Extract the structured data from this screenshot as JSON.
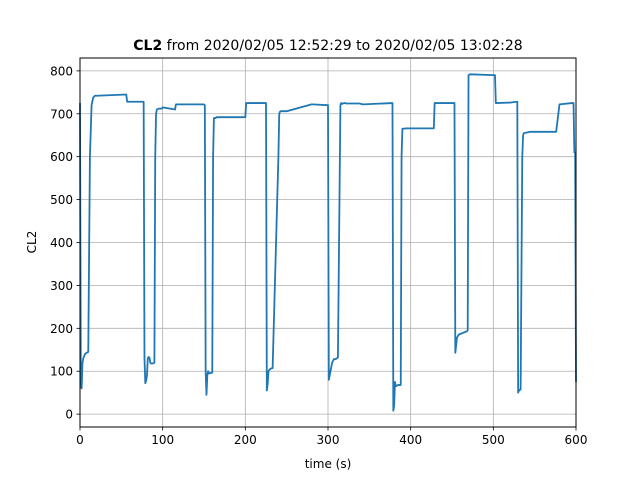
{
  "chart_data": {
    "type": "line",
    "title": {
      "bold": "CL2",
      "rest": " from 2020/02/05 12:52:29 to 2020/02/05 13:02:28"
    },
    "xlabel": "time (s)",
    "ylabel": "CL2",
    "xlim": [
      0,
      600
    ],
    "ylim": [
      -30,
      830
    ],
    "x_ticks": [
      0,
      100,
      200,
      300,
      400,
      500,
      600
    ],
    "y_ticks": [
      0,
      100,
      200,
      300,
      400,
      500,
      600,
      700,
      800
    ],
    "grid": true,
    "line_color": "#1f77b4",
    "series": [
      {
        "x": [
          0,
          1,
          2,
          3,
          4,
          5,
          6,
          8,
          10,
          12,
          14,
          16,
          17,
          18,
          20,
          56,
          57,
          77,
          78,
          79,
          80,
          81,
          82,
          83,
          84,
          85,
          86,
          88,
          90,
          91,
          92,
          93,
          95,
          99,
          100,
          115,
          116,
          120,
          150,
          151,
          152,
          153,
          154,
          155,
          156,
          157,
          160,
          161,
          162,
          164,
          165,
          200,
          201,
          220,
          225,
          226,
          227,
          228,
          229,
          230,
          232,
          233,
          240,
          241,
          242,
          243,
          245,
          250,
          280,
          281,
          300,
          301,
          302,
          303,
          304,
          305,
          307,
          309,
          312,
          315,
          316,
          317,
          318,
          320,
          322,
          338,
          342,
          378,
          379,
          380,
          381,
          382,
          385,
          388,
          389,
          390,
          395,
          428,
          429,
          452,
          453,
          454,
          455,
          456,
          458,
          464,
          468,
          469,
          470,
          472,
          500,
          501,
          502,
          503,
          520,
          528,
          529,
          530,
          531,
          532,
          533,
          535,
          536,
          537,
          545,
          575,
          576,
          580,
          595,
          597,
          598,
          599,
          600
        ],
        "y": [
          725,
          65,
          60,
          120,
          130,
          135,
          140,
          143,
          145,
          600,
          720,
          738,
          740,
          742,
          742,
          745,
          728,
          728,
          130,
          72,
          78,
          90,
          130,
          133,
          132,
          120,
          118,
          118,
          120,
          600,
          700,
          710,
          712,
          712,
          715,
          710,
          722,
          722,
          722,
          720,
          100,
          45,
          90,
          100,
          95,
          95,
          97,
          600,
          690,
          690,
          692,
          692,
          725,
          725,
          725,
          55,
          70,
          100,
          103,
          105,
          107,
          107,
          600,
          700,
          705,
          706,
          706,
          706,
          722,
          722,
          720,
          80,
          90,
          100,
          110,
          120,
          128,
          128,
          132,
          720,
          725,
          723,
          724,
          725,
          724,
          724,
          722,
          725,
          8,
          20,
          75,
          65,
          68,
          68,
          600,
          665,
          666,
          666,
          725,
          725,
          725,
          143,
          160,
          178,
          185,
          190,
          193,
          196,
          790,
          792,
          790,
          790,
          790,
          725,
          726,
          728,
          728,
          50,
          55,
          57,
          57,
          600,
          650,
          655,
          658,
          658,
          658,
          722,
          725,
          725,
          610,
          610,
          75
        ]
      }
    ]
  }
}
